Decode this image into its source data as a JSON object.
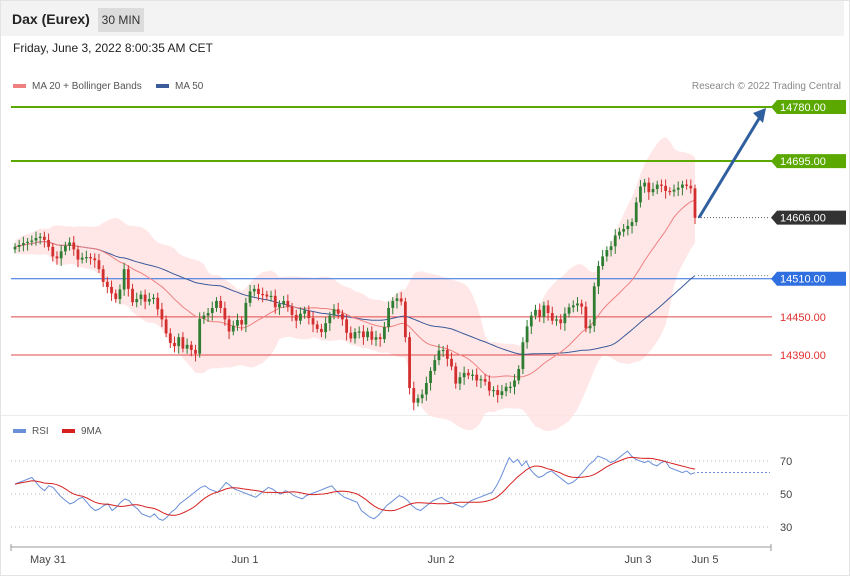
{
  "header": {
    "instrument": "Dax (Eurex)",
    "timeframe": "30 MIN",
    "datetime": "Friday, June 3, 2022 8:00:35 AM CET"
  },
  "legend": {
    "ma20_label": "MA 20 + Bollinger Bands",
    "ma50_label": "MA 50",
    "credit": "Research © 2022 Trading Central"
  },
  "rsi_legend": {
    "rsi_label": "RSI",
    "ma_label": "9MA"
  },
  "colors": {
    "bull": "#2e7d32",
    "bear": "#d32f2f",
    "ma20": "#f08080",
    "ma50": "#3b5b9a",
    "band": "#ffe3e3",
    "resistance": "#5aa800",
    "pivot": "#2f6fe0",
    "support": "#e04848",
    "arrow": "#2f5f9f",
    "rsi": "#6a8fd8",
    "rsi_ma": "#d62020"
  },
  "chart_data": [
    {
      "type": "candlestick",
      "title": "Dax (Eurex)",
      "y_range": [
        14250,
        14800
      ],
      "x_labels": [
        "May 31",
        "Jun 1",
        "Jun 2",
        "Jun 3",
        "Jun 5"
      ],
      "levels": [
        {
          "value": 14780.0,
          "label": "14780.00",
          "kind": "resistance"
        },
        {
          "value": 14695.0,
          "label": "14695.00",
          "kind": "resistance"
        },
        {
          "value": 14606.0,
          "label": "14606.00",
          "kind": "current"
        },
        {
          "value": 14510.0,
          "label": "14510.00",
          "kind": "pivot"
        },
        {
          "value": 14450.0,
          "label": "14450.00",
          "kind": "support"
        },
        {
          "value": 14390.0,
          "label": "14390.00",
          "kind": "support"
        }
      ],
      "projection": {
        "from": 14606,
        "to": 14780
      },
      "closes": [
        14560,
        14563,
        14566,
        14568,
        14570,
        14574,
        14576,
        14571,
        14560,
        14545,
        14542,
        14553,
        14562,
        14567,
        14556,
        14540,
        14543,
        14544,
        14542,
        14539,
        14525,
        14505,
        14497,
        14487,
        14478,
        14493,
        14525,
        14494,
        14473,
        14478,
        14485,
        14474,
        14478,
        14480,
        14462,
        14446,
        14424,
        14409,
        14404,
        14418,
        14400,
        14406,
        14398,
        14392,
        14447,
        14452,
        14456,
        14464,
        14475,
        14464,
        14446,
        14427,
        14436,
        14445,
        14438,
        14472,
        14490,
        14494,
        14486,
        14485,
        14482,
        14483,
        14465,
        14470,
        14475,
        14466,
        14453,
        14444,
        14455,
        14460,
        14448,
        14438,
        14431,
        14426,
        14440,
        14452,
        14462,
        14455,
        14446,
        14425,
        14416,
        14426,
        14427,
        14418,
        14427,
        14414,
        14418,
        14415,
        14434,
        14464,
        14475,
        14479,
        14474,
        14418,
        14338,
        14315,
        14322,
        14328,
        14346,
        14365,
        14382,
        14397,
        14398,
        14384,
        14372,
        14345,
        14355,
        14362,
        14358,
        14359,
        14350,
        14352,
        14348,
        14334,
        14335,
        14327,
        14333,
        14340,
        14340,
        14350,
        14368,
        14410,
        14435,
        14452,
        14461,
        14450,
        14468,
        14456,
        14444,
        14446,
        14440,
        14455,
        14465,
        14468,
        14471,
        14466,
        14432,
        14436,
        14498,
        14530,
        14545,
        14555,
        14561,
        14578,
        14584,
        14588,
        14593,
        14599,
        14630,
        14655,
        14661,
        14646,
        14651,
        14658,
        14656,
        14648,
        14647,
        14650,
        14653,
        14658,
        14656,
        14652,
        14606
      ],
      "rsi": [
        56,
        57,
        58,
        59,
        60,
        57,
        54,
        52,
        55,
        54,
        51,
        48,
        46,
        44,
        45,
        47,
        48,
        45,
        42,
        40,
        41,
        43,
        44,
        40,
        42,
        45,
        47,
        46,
        43,
        41,
        38,
        37,
        36,
        38,
        35,
        34,
        36,
        39,
        41,
        44,
        46,
        48,
        50,
        52,
        54,
        55,
        53,
        52,
        51,
        54,
        57,
        55,
        53,
        52,
        51,
        50,
        49,
        48,
        50,
        52,
        54,
        53,
        51,
        50,
        52,
        51,
        49,
        48,
        47,
        49,
        50,
        51,
        52,
        53,
        54,
        55,
        52,
        50,
        48,
        47,
        46,
        45,
        40,
        38,
        36,
        35,
        37,
        40,
        43,
        45,
        47,
        49,
        48,
        46,
        43,
        41,
        40,
        42,
        44,
        46,
        47,
        48,
        46,
        45,
        44,
        43,
        42,
        44,
        46,
        47,
        48,
        49,
        50,
        51,
        55,
        60,
        66,
        72,
        69,
        71,
        67,
        70,
        65,
        62,
        60,
        61,
        63,
        64,
        62,
        60,
        58,
        56,
        57,
        59,
        62,
        65,
        68,
        70,
        73,
        72,
        71,
        69,
        70,
        72,
        74,
        76,
        73,
        71,
        70,
        69,
        70,
        68,
        67,
        69,
        70,
        66,
        65,
        64,
        63,
        64,
        62,
        63
      ],
      "rsi_ticks": [
        70,
        50,
        30
      ]
    }
  ]
}
